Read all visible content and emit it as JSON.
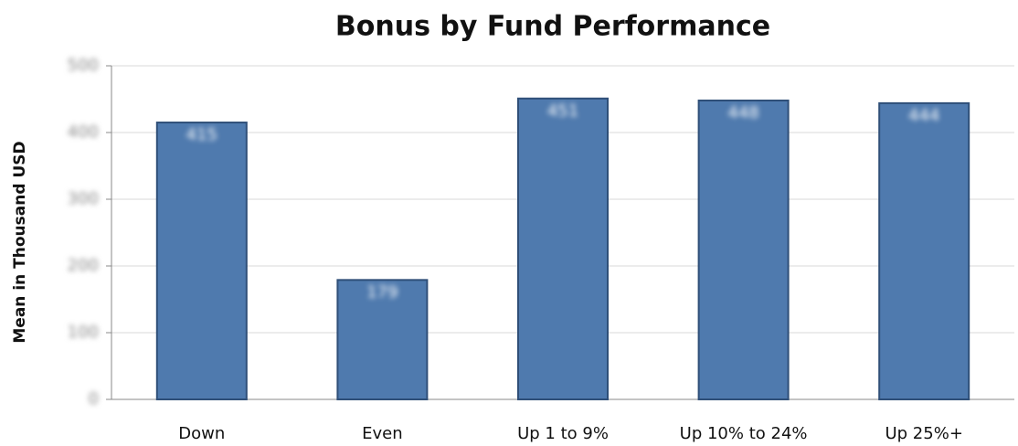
{
  "chart_data": {
    "type": "bar",
    "title": "Bonus by Fund Performance",
    "y_label": "Mean in Thousand USD",
    "categories": [
      "Down",
      "Even",
      "Up 1 to 9%",
      "Up 10% to 24%",
      "Up 25%+"
    ],
    "values": [
      415,
      179,
      451,
      448,
      444
    ],
    "color": "#4f7aae",
    "ylim": [
      0,
      500
    ],
    "yticks": [
      0,
      100,
      200,
      300,
      400,
      500
    ],
    "grid": true
  }
}
